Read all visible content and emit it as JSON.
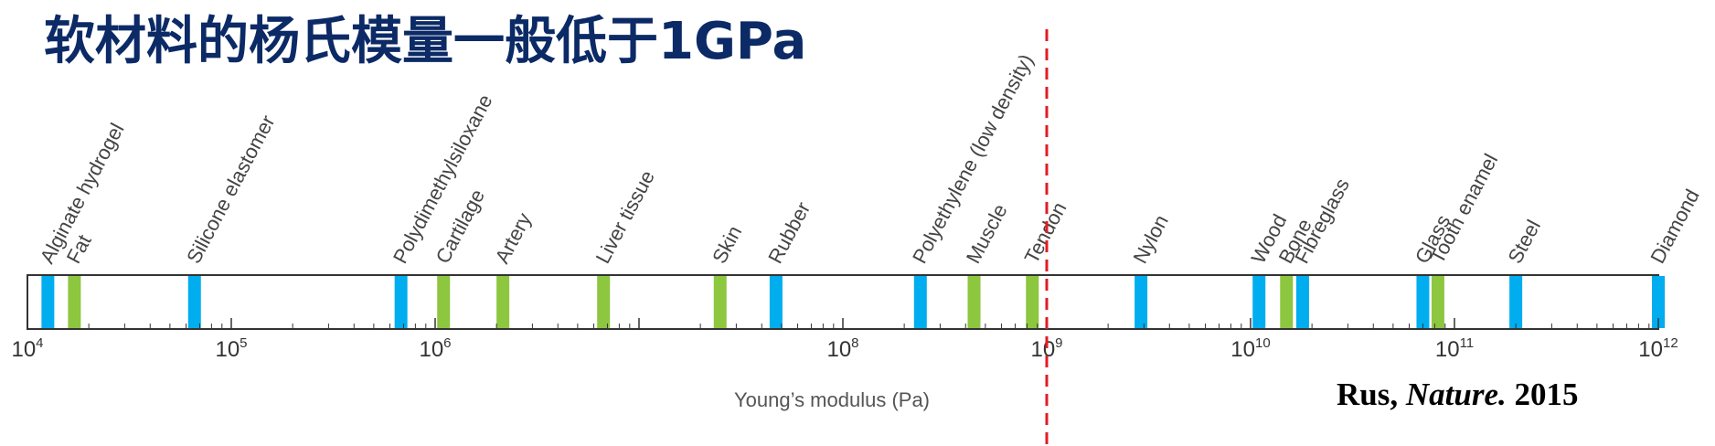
{
  "title": "软材料的杨氏模量一般低于1GPa",
  "citation": {
    "author": "Rus,",
    "journal": "Nature.",
    "year": "2015"
  },
  "colors": {
    "title": "#0b2a66",
    "synthetic": "#00adef",
    "biological": "#8dc63f",
    "axis": "#333333",
    "threshold": "#e31b23",
    "label": "#444444"
  },
  "chart_data": {
    "type": "strip",
    "xscale": "log10",
    "xlim_exp": [
      4,
      12
    ],
    "xlabel": "Young’s modulus (Pa)",
    "major_ticks": [
      4,
      5,
      6,
      8,
      9,
      10,
      11,
      12
    ],
    "threshold": {
      "value": 1000000000.0,
      "style": "dashed",
      "color": "#e31b23"
    },
    "categories": {
      "synthetic": "#00adef",
      "biological": "#8dc63f"
    },
    "materials": [
      {
        "name": "Alginate hydrogel",
        "value": 12600,
        "category": "synthetic"
      },
      {
        "name": "Fat",
        "value": 17000,
        "category": "biological"
      },
      {
        "name": "Silicone elastomer",
        "value": 66000,
        "category": "synthetic"
      },
      {
        "name": "Polydimethylsiloxane",
        "value": 680000,
        "category": "synthetic"
      },
      {
        "name": "Cartilage",
        "value": 1100000,
        "category": "biological"
      },
      {
        "name": "Artery",
        "value": 2150000,
        "category": "biological"
      },
      {
        "name": "Liver tissue",
        "value": 6700000,
        "category": "biological"
      },
      {
        "name": "Skin",
        "value": 25000000,
        "category": "biological"
      },
      {
        "name": "Rubber",
        "value": 47000000,
        "category": "synthetic"
      },
      {
        "name": "Polyethylene (low density)",
        "value": 240000000,
        "category": "synthetic"
      },
      {
        "name": "Muscle",
        "value": 440000000,
        "category": "biological"
      },
      {
        "name": "Tendon",
        "value": 850000000,
        "category": "biological"
      },
      {
        "name": "Nylon",
        "value": 2900000000,
        "category": "synthetic"
      },
      {
        "name": "Wood",
        "value": 11000000000,
        "category": "synthetic"
      },
      {
        "name": "Bone",
        "value": 15000000000,
        "category": "biological"
      },
      {
        "name": "Fibreglass",
        "value": 18000000000,
        "category": "synthetic"
      },
      {
        "name": "Glass",
        "value": 70000000000,
        "category": "synthetic"
      },
      {
        "name": "Tooth enamel",
        "value": 83000000000,
        "category": "biological"
      },
      {
        "name": "Steel",
        "value": 200000000000,
        "category": "synthetic"
      },
      {
        "name": "Diamond",
        "value": 1000000000000,
        "category": "synthetic"
      }
    ]
  }
}
